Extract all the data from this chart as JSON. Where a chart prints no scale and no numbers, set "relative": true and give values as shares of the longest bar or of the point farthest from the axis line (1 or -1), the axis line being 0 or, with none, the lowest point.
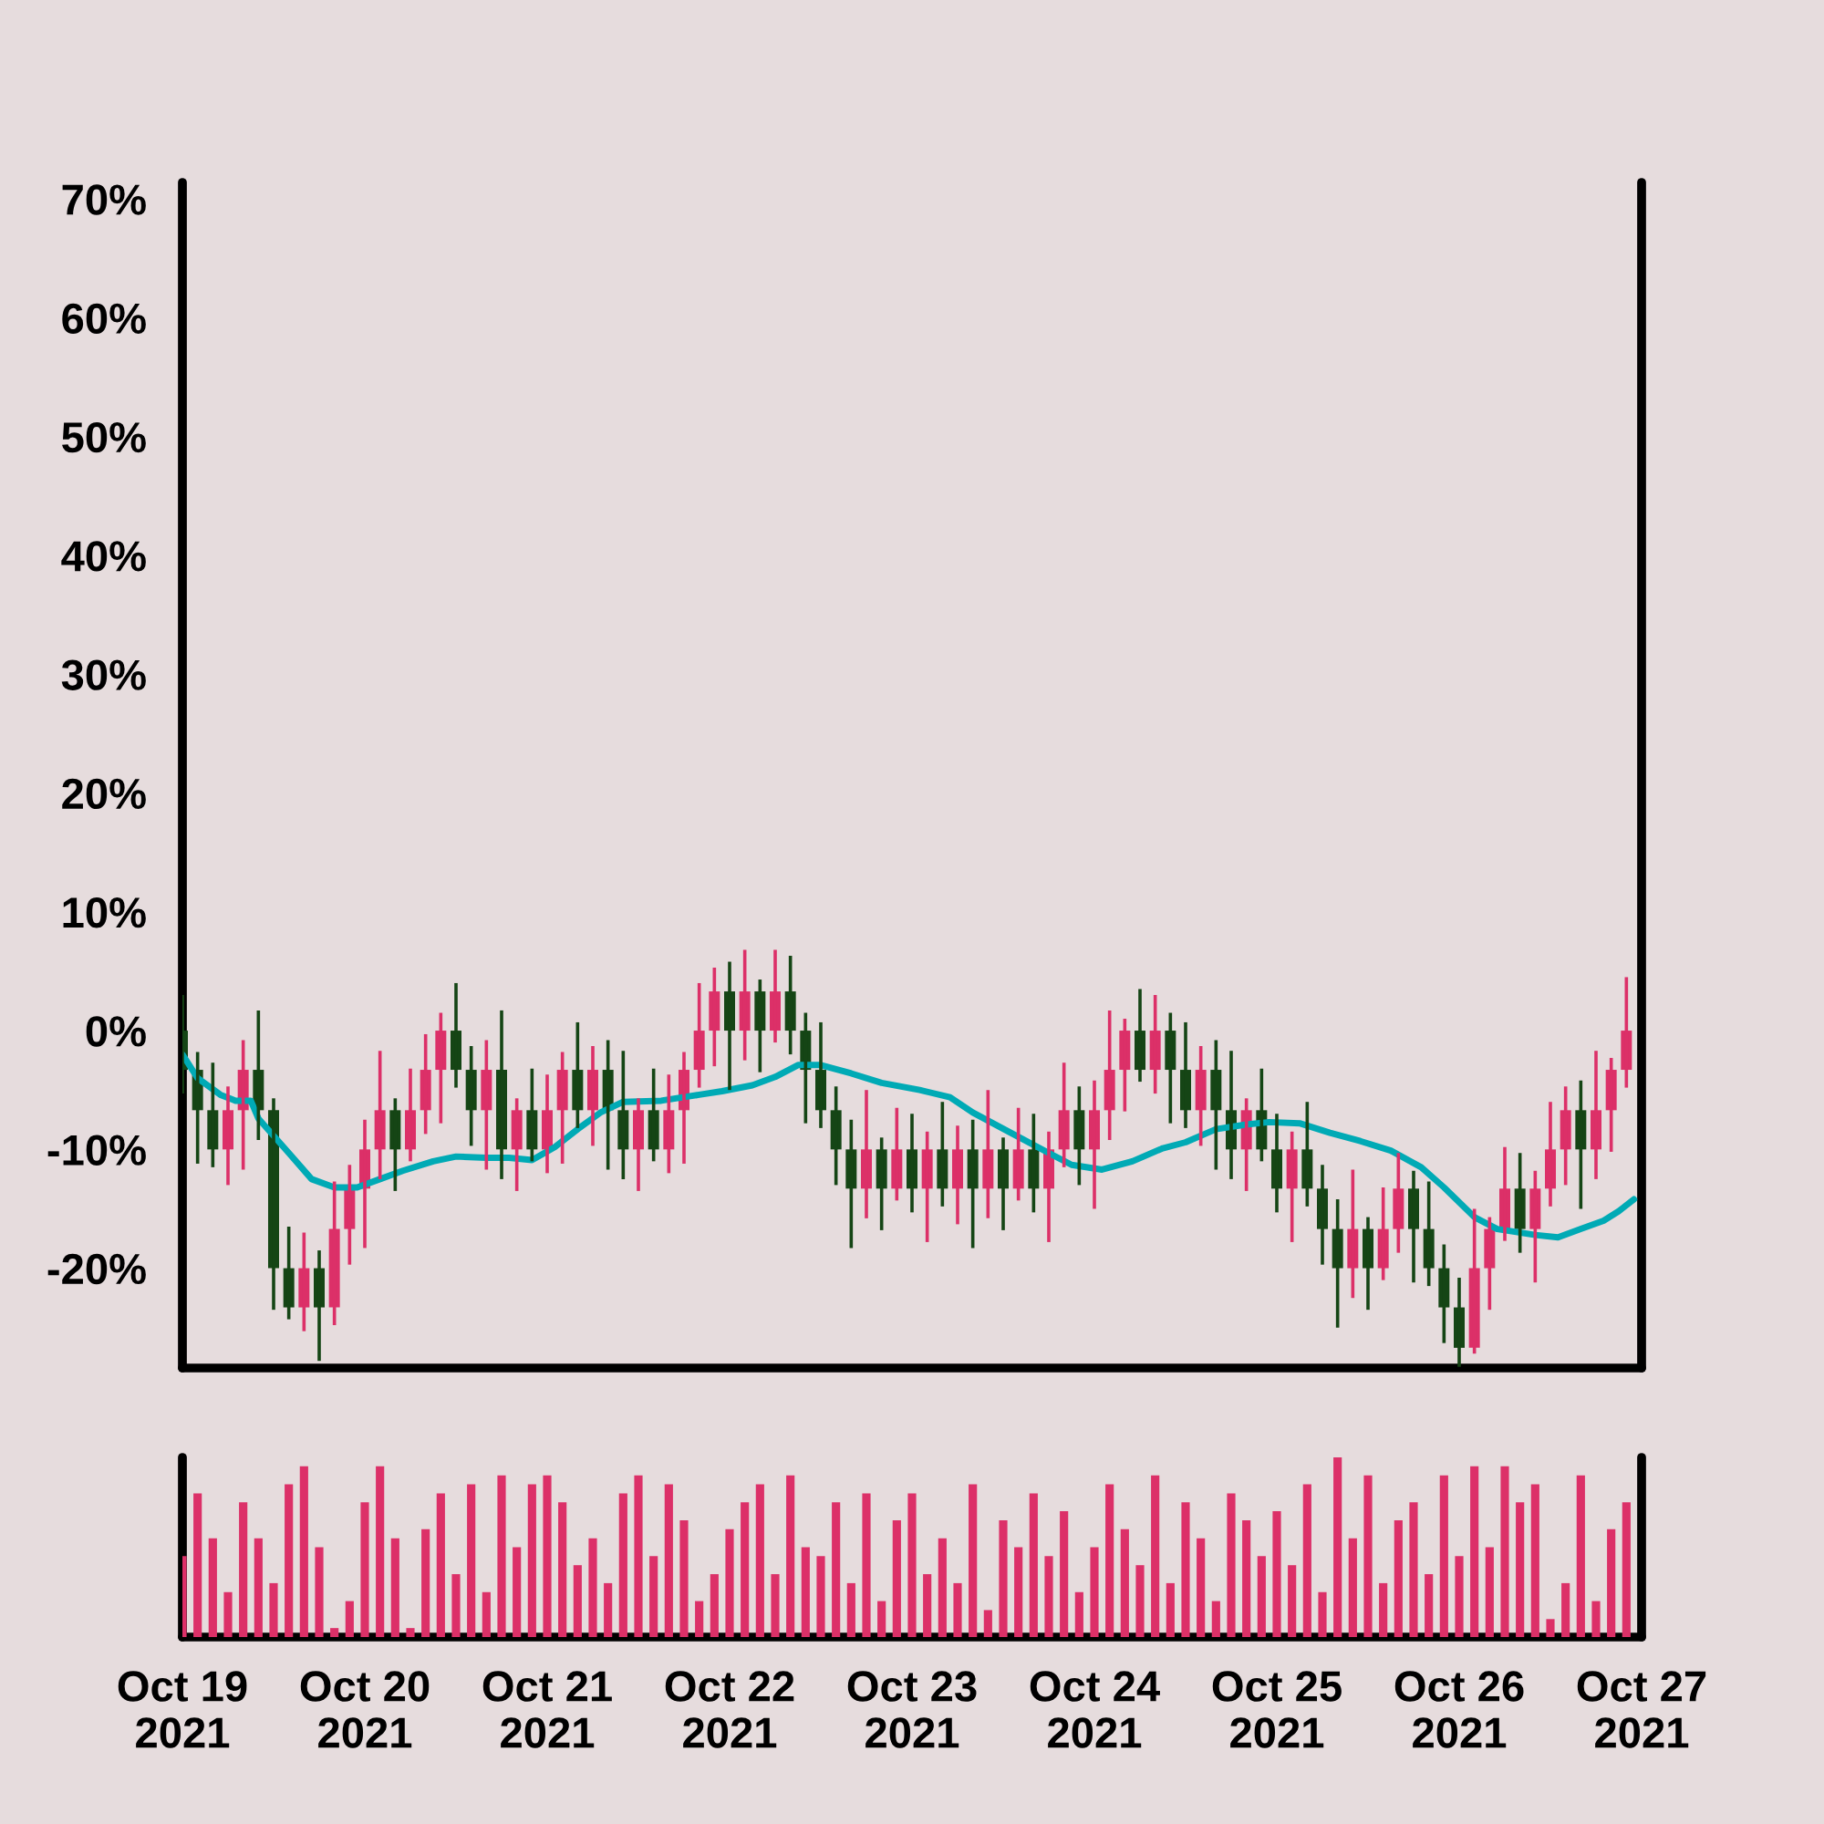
{
  "chart_data": [
    {
      "type": "candlestick",
      "xlim": [
        "2021-10-19",
        "2021-10-27"
      ],
      "ylim": [
        -28.4,
        71.4
      ],
      "yticks": [
        {
          "value": -20,
          "label": "-20%"
        },
        {
          "value": -10,
          "label": "-10%"
        },
        {
          "value": 0,
          "label": "0%"
        },
        {
          "value": 10,
          "label": "10%"
        },
        {
          "value": 20,
          "label": "20%"
        },
        {
          "value": 30,
          "label": "30%"
        },
        {
          "value": 40,
          "label": "40%"
        },
        {
          "value": 50,
          "label": "50%"
        },
        {
          "value": 60,
          "label": "60%"
        },
        {
          "value": 70,
          "label": "70%"
        }
      ],
      "tick_labels": "y",
      "grid": false,
      "series": [
        {
          "type": "line",
          "color": "#00aab5",
          "line_style": "solid",
          "marker": "none",
          "x": [
            "2021-10-19T00:00",
            "2021-10-19T02:00",
            "2021-10-19T05:00",
            "2021-10-19T07:00",
            "2021-10-19T09:00",
            "2021-10-19T10:00",
            "2021-10-19T14:00",
            "2021-10-19T17:00",
            "2021-10-19T20:00",
            "2021-10-19T23:00",
            "2021-10-20T02:00",
            "2021-10-20T05:00",
            "2021-10-20T09:00",
            "2021-10-20T12:00",
            "2021-10-20T16:00",
            "2021-10-20T19:00",
            "2021-10-20T22:00",
            "2021-10-21T01:00",
            "2021-10-21T04:00",
            "2021-10-21T07:00",
            "2021-10-21T10:00",
            "2021-10-21T15:00",
            "2021-10-21T20:00",
            "2021-10-21T23:00",
            "2021-10-22T03:00",
            "2021-10-22T06:00",
            "2021-10-22T09:00",
            "2021-10-22T12:00",
            "2021-10-22T16:00",
            "2021-10-22T20:00",
            "2021-10-23T01:00",
            "2021-10-23T05:00",
            "2021-10-23T08:00",
            "2021-10-23T13:00",
            "2021-10-23T18:00",
            "2021-10-23T21:00",
            "2021-10-24T01:00",
            "2021-10-24T05:00",
            "2021-10-24T09:00",
            "2021-10-24T12:00",
            "2021-10-24T16:00",
            "2021-10-24T20:00",
            "2021-10-24T23:00",
            "2021-10-25T03:00",
            "2021-10-25T07:00",
            "2021-10-25T11:00",
            "2021-10-25T15:00",
            "2021-10-25T19:00",
            "2021-10-25T22:00",
            "2021-10-26T02:00",
            "2021-10-26T05:00",
            "2021-10-26T10:00",
            "2021-10-26T13:00",
            "2021-10-26T16:00",
            "2021-10-26T19:00",
            "2021-10-26T21:00",
            "2021-10-26T23:00"
          ],
          "values": [
            -2,
            -4,
            -5.4,
            -5.9,
            -5.9,
            -7.4,
            -10.3,
            -12.5,
            -13.2,
            -13.2,
            -12.5,
            -11.8,
            -11,
            -10.6,
            -10.7,
            -10.7,
            -10.9,
            -9.8,
            -8.3,
            -6.9,
            -6,
            -5.9,
            -5.4,
            -5.1,
            -4.6,
            -3.9,
            -2.9,
            -2.9,
            -3.6,
            -4.4,
            -5,
            -5.6,
            -6.9,
            -8.6,
            -10.3,
            -11.3,
            -11.7,
            -11,
            -9.9,
            -9.4,
            -8.3,
            -7.9,
            -7.7,
            -7.8,
            -8.6,
            -9.3,
            -10.1,
            -11.5,
            -13.2,
            -15.7,
            -16.7,
            -17.2,
            -17.4,
            -16.7,
            -16,
            -15.2,
            -14.2
          ]
        },
        {
          "type": "candlestick",
          "color": "#dc3068",
          "x": [
            "2021-10-19T06:00",
            "2021-10-19T08:00",
            "2021-10-19T16:00",
            "2021-10-19T20:00",
            "2021-10-19T22:00",
            "2021-10-20T00:00",
            "2021-10-20T02:00",
            "2021-10-20T06:00",
            "2021-10-20T08:00",
            "2021-10-20T10:00",
            "2021-10-20T16:00",
            "2021-10-20T20:00",
            "2021-10-21T00:00",
            "2021-10-21T02:00",
            "2021-10-21T06:00",
            "2021-10-21T12:00",
            "2021-10-21T16:00",
            "2021-10-21T18:00",
            "2021-10-21T20:00",
            "2021-10-21T22:00",
            "2021-10-22T02:00",
            "2021-10-22T06:00",
            "2021-10-22T18:00",
            "2021-10-22T22:00",
            "2021-10-23T02:00",
            "2021-10-23T06:00",
            "2021-10-23T10:00",
            "2021-10-23T14:00",
            "2021-10-23T18:00",
            "2021-10-23T20:00",
            "2021-10-24T00:00",
            "2021-10-24T02:00",
            "2021-10-24T04:00",
            "2021-10-24T08:00",
            "2021-10-24T14:00",
            "2021-10-24T20:00",
            "2021-10-25T02:00",
            "2021-10-25T10:00",
            "2021-10-25T14:00",
            "2021-10-25T16:00",
            "2021-10-26T02:00",
            "2021-10-26T04:00",
            "2021-10-26T06:00",
            "2021-10-26T10:00",
            "2021-10-26T12:00",
            "2021-10-26T14:00",
            "2021-10-26T18:00",
            "2021-10-26T20:00",
            "2021-10-26T22:00"
          ],
          "ohlc": [
            [
              -10,
              -4.7,
              -13,
              -6.7
            ],
            [
              -6.7,
              -0.8,
              -11.7,
              -3.3
            ],
            [
              -23.3,
              -17,
              -25.3,
              -20
            ],
            [
              -23.3,
              -12.7,
              -24.8,
              -16.7
            ],
            [
              -16.7,
              -11.3,
              -19.7,
              -13.3
            ],
            [
              -13.3,
              -7.5,
              -18.3,
              -10
            ],
            [
              -10,
              -1.7,
              -12.5,
              -6.7
            ],
            [
              -10,
              -3.2,
              -11,
              -6.7
            ],
            [
              -6.7,
              -0.3,
              -8.7,
              -3.3
            ],
            [
              -3.3,
              1.5,
              -7.8,
              0
            ],
            [
              -6.7,
              -0.8,
              -11.7,
              -3.3
            ],
            [
              -10,
              -5.7,
              -13.5,
              -6.7
            ],
            [
              -10,
              -3.7,
              -12,
              -6.7
            ],
            [
              -6.7,
              -1.8,
              -11.2,
              -3.3
            ],
            [
              -6.7,
              -1.3,
              -9.7,
              -3.3
            ],
            [
              -10,
              -5.7,
              -13.5,
              -6.7
            ],
            [
              -10,
              -3.7,
              -12,
              -6.7
            ],
            [
              -6.7,
              -1.8,
              -11.2,
              -3.3
            ],
            [
              -3.3,
              4,
              -4.8,
              0
            ],
            [
              0,
              5.3,
              -3,
              3.3
            ],
            [
              0,
              6.8,
              -2.5,
              3.3
            ],
            [
              0,
              6.8,
              -1,
              3.3
            ],
            [
              -13.3,
              -5,
              -15.8,
              -10
            ],
            [
              -13.3,
              -6.5,
              -14.3,
              -10
            ],
            [
              -13.3,
              -8.5,
              -17.8,
              -10
            ],
            [
              -13.3,
              -8,
              -16.3,
              -10
            ],
            [
              -13.3,
              -5,
              -15.8,
              -10
            ],
            [
              -13.3,
              -6.5,
              -14.3,
              -10
            ],
            [
              -13.3,
              -8.5,
              -17.8,
              -10
            ],
            [
              -10,
              -2.7,
              -11.5,
              -6.7
            ],
            [
              -10,
              -4.2,
              -15,
              -6.7
            ],
            [
              -6.7,
              1.7,
              -9.2,
              -3.3
            ],
            [
              -3.3,
              1,
              -6.8,
              0
            ],
            [
              -3.3,
              3,
              -5.3,
              0
            ],
            [
              -6.7,
              -1.3,
              -9.7,
              -3.3
            ],
            [
              -10,
              -5.7,
              -13.5,
              -6.7
            ],
            [
              -13.3,
              -8.5,
              -17.8,
              -10
            ],
            [
              -20,
              -11.7,
              -22.5,
              -16.7
            ],
            [
              -20,
              -13.2,
              -21,
              -16.7
            ],
            [
              -16.7,
              -10.3,
              -18.7,
              -13.3
            ],
            [
              -26.7,
              -15,
              -27.2,
              -20
            ],
            [
              -20,
              -15.7,
              -23.5,
              -16.7
            ],
            [
              -16.7,
              -9.8,
              -17.7,
              -13.3
            ],
            [
              -16.7,
              -11.8,
              -21.2,
              -13.3
            ],
            [
              -13.3,
              -6,
              -14.8,
              -10
            ],
            [
              -10,
              -4.7,
              -13,
              -6.7
            ],
            [
              -10,
              -1.7,
              -12.5,
              -6.7
            ],
            [
              -6.7,
              -2.3,
              -10.2,
              -3.3
            ],
            [
              -3.3,
              4.5,
              -4.8,
              0
            ]
          ]
        },
        {
          "type": "candlestick",
          "color": "#154515",
          "x": [
            "2021-10-19T00:00",
            "2021-10-19T02:00",
            "2021-10-19T04:00",
            "2021-10-19T10:00",
            "2021-10-19T12:00",
            "2021-10-19T14:00",
            "2021-10-19T18:00",
            "2021-10-20T04:00",
            "2021-10-20T12:00",
            "2021-10-20T14:00",
            "2021-10-20T18:00",
            "2021-10-20T22:00",
            "2021-10-21T04:00",
            "2021-10-21T08:00",
            "2021-10-21T10:00",
            "2021-10-21T14:00",
            "2021-10-22T00:00",
            "2021-10-22T04:00",
            "2021-10-22T08:00",
            "2021-10-22T10:00",
            "2021-10-22T12:00",
            "2021-10-22T14:00",
            "2021-10-22T16:00",
            "2021-10-22T20:00",
            "2021-10-23T00:00",
            "2021-10-23T04:00",
            "2021-10-23T08:00",
            "2021-10-23T12:00",
            "2021-10-23T16:00",
            "2021-10-23T22:00",
            "2021-10-24T06:00",
            "2021-10-24T10:00",
            "2021-10-24T12:00",
            "2021-10-24T16:00",
            "2021-10-24T18:00",
            "2021-10-24T22:00",
            "2021-10-25T00:00",
            "2021-10-25T04:00",
            "2021-10-25T06:00",
            "2021-10-25T08:00",
            "2021-10-25T12:00",
            "2021-10-25T18:00",
            "2021-10-25T20:00",
            "2021-10-25T22:00",
            "2021-10-26T00:00",
            "2021-10-26T08:00",
            "2021-10-26T16:00"
          ],
          "ohlc": [
            [
              0,
              3,
              -5.3,
              -3.3
            ],
            [
              -3.3,
              -1.8,
              -11.2,
              -6.7
            ],
            [
              -6.7,
              -2.7,
              -11.5,
              -10
            ],
            [
              -3.3,
              1.7,
              -9.2,
              -6.7
            ],
            [
              -6.7,
              -5.7,
              -23.5,
              -20
            ],
            [
              -20,
              -16.5,
              -24.3,
              -23.3
            ],
            [
              -20,
              -18.5,
              -27.8,
              -23.3
            ],
            [
              -6.7,
              -5.7,
              -13.5,
              -10
            ],
            [
              0,
              4,
              -4.8,
              -3.3
            ],
            [
              -3.3,
              -1.3,
              -9.7,
              -6.7
            ],
            [
              -3.3,
              1.7,
              -12.5,
              -10
            ],
            [
              -6.7,
              -3.2,
              -11,
              -10
            ],
            [
              -3.3,
              0.7,
              -8.2,
              -6.7
            ],
            [
              -3.3,
              -0.8,
              -11.7,
              -6.7
            ],
            [
              -6.7,
              -1.7,
              -12.5,
              -10
            ],
            [
              -6.7,
              -3.2,
              -11,
              -10
            ],
            [
              3.3,
              5.8,
              -5,
              0
            ],
            [
              3.3,
              4.3,
              -3.5,
              0
            ],
            [
              3.3,
              6.3,
              -2,
              0
            ],
            [
              0,
              1.5,
              -7.8,
              -3.3
            ],
            [
              -3.3,
              0.7,
              -8.2,
              -6.7
            ],
            [
              -6.7,
              -4.7,
              -13,
              -10
            ],
            [
              -10,
              -7.5,
              -18.3,
              -13.3
            ],
            [
              -10,
              -9,
              -16.8,
              -13.3
            ],
            [
              -10,
              -7,
              -15.3,
              -13.3
            ],
            [
              -10,
              -6,
              -14.8,
              -13.3
            ],
            [
              -10,
              -7.5,
              -18.3,
              -13.3
            ],
            [
              -10,
              -9,
              -16.8,
              -13.3
            ],
            [
              -10,
              -7,
              -15.3,
              -13.3
            ],
            [
              -6.7,
              -4.7,
              -13,
              -10
            ],
            [
              0,
              3.5,
              -4.3,
              -3.3
            ],
            [
              0,
              1.5,
              -7.8,
              -3.3
            ],
            [
              -3.3,
              0.7,
              -8.2,
              -6.7
            ],
            [
              -3.3,
              -0.8,
              -11.7,
              -6.7
            ],
            [
              -6.7,
              -1.7,
              -12.5,
              -10
            ],
            [
              -6.7,
              -3.2,
              -11,
              -10
            ],
            [
              -10,
              -7,
              -15.3,
              -13.3
            ],
            [
              -10,
              -6,
              -14.8,
              -13.3
            ],
            [
              -13.3,
              -11.3,
              -19.7,
              -16.7
            ],
            [
              -16.7,
              -14.2,
              -25,
              -20
            ],
            [
              -16.7,
              -15.7,
              -23.5,
              -20
            ],
            [
              -13.3,
              -11.8,
              -21.2,
              -16.7
            ],
            [
              -16.7,
              -12.7,
              -21.5,
              -20
            ],
            [
              -20,
              -18,
              -26.3,
              -23.3
            ],
            [
              -23.3,
              -20.8,
              -28.3,
              -26.7
            ],
            [
              -13.3,
              -10.3,
              -18.7,
              -16.7
            ],
            [
              -6.7,
              -4.2,
              -15,
              -10
            ]
          ]
        }
      ]
    },
    {
      "type": "bar",
      "relative": true,
      "color": "#dc3068",
      "xlim": [
        "2021-10-19",
        "2021-10-27"
      ],
      "tick_labels": "x",
      "grid": false,
      "xticks": [
        {
          "value": "2021-10-19",
          "label": "Oct 19\n2021"
        },
        {
          "value": "2021-10-20",
          "label": "Oct 20\n2021"
        },
        {
          "value": "2021-10-21",
          "label": "Oct 21\n2021"
        },
        {
          "value": "2021-10-22",
          "label": "Oct 22\n2021"
        },
        {
          "value": "2021-10-23",
          "label": "Oct 23\n2021"
        },
        {
          "value": "2021-10-24",
          "label": "Oct 24\n2021"
        },
        {
          "value": "2021-10-25",
          "label": "Oct 25\n2021"
        },
        {
          "value": "2021-10-26",
          "label": "Oct 26\n2021"
        },
        {
          "value": "2021-10-27",
          "label": "Oct 27\n2021"
        }
      ],
      "x": [
        "2021-10-19T00:00",
        "2021-10-19T02:00",
        "2021-10-19T04:00",
        "2021-10-19T06:00",
        "2021-10-19T08:00",
        "2021-10-19T10:00",
        "2021-10-19T12:00",
        "2021-10-19T14:00",
        "2021-10-19T16:00",
        "2021-10-19T18:00",
        "2021-10-19T20:00",
        "2021-10-19T22:00",
        "2021-10-20T00:00",
        "2021-10-20T02:00",
        "2021-10-20T04:00",
        "2021-10-20T06:00",
        "2021-10-20T08:00",
        "2021-10-20T10:00",
        "2021-10-20T12:00",
        "2021-10-20T14:00",
        "2021-10-20T16:00",
        "2021-10-20T18:00",
        "2021-10-20T20:00",
        "2021-10-20T22:00",
        "2021-10-21T00:00",
        "2021-10-21T02:00",
        "2021-10-21T04:00",
        "2021-10-21T06:00",
        "2021-10-21T08:00",
        "2021-10-21T10:00",
        "2021-10-21T12:00",
        "2021-10-21T14:00",
        "2021-10-21T16:00",
        "2021-10-21T18:00",
        "2021-10-21T20:00",
        "2021-10-21T22:00",
        "2021-10-22T00:00",
        "2021-10-22T02:00",
        "2021-10-22T04:00",
        "2021-10-22T06:00",
        "2021-10-22T08:00",
        "2021-10-22T10:00",
        "2021-10-22T12:00",
        "2021-10-22T14:00",
        "2021-10-22T16:00",
        "2021-10-22T18:00",
        "2021-10-22T20:00",
        "2021-10-22T22:00",
        "2021-10-23T00:00",
        "2021-10-23T02:00",
        "2021-10-23T04:00",
        "2021-10-23T06:00",
        "2021-10-23T08:00",
        "2021-10-23T10:00",
        "2021-10-23T12:00",
        "2021-10-23T14:00",
        "2021-10-23T16:00",
        "2021-10-23T18:00",
        "2021-10-23T20:00",
        "2021-10-23T22:00",
        "2021-10-24T00:00",
        "2021-10-24T02:00",
        "2021-10-24T04:00",
        "2021-10-24T06:00",
        "2021-10-24T08:00",
        "2021-10-24T10:00",
        "2021-10-24T12:00",
        "2021-10-24T14:00",
        "2021-10-24T16:00",
        "2021-10-24T18:00",
        "2021-10-24T20:00",
        "2021-10-24T22:00",
        "2021-10-25T00:00",
        "2021-10-25T02:00",
        "2021-10-25T04:00",
        "2021-10-25T06:00",
        "2021-10-25T08:00",
        "2021-10-25T10:00",
        "2021-10-25T12:00",
        "2021-10-25T14:00",
        "2021-10-25T16:00",
        "2021-10-25T18:00",
        "2021-10-25T20:00",
        "2021-10-25T22:00",
        "2021-10-26T00:00",
        "2021-10-26T02:00",
        "2021-10-26T04:00",
        "2021-10-26T06:00",
        "2021-10-26T08:00",
        "2021-10-26T10:00",
        "2021-10-26T12:00",
        "2021-10-26T14:00",
        "2021-10-26T16:00",
        "2021-10-26T18:00",
        "2021-10-26T20:00",
        "2021-10-26T22:00"
      ],
      "values": [
        0.45,
        0.8,
        0.55,
        0.25,
        0.75,
        0.55,
        0.3,
        0.85,
        0.95,
        0.5,
        0.05,
        0.2,
        0.75,
        0.95,
        0.55,
        0.05,
        0.6,
        0.8,
        0.35,
        0.85,
        0.25,
        0.9,
        0.5,
        0.85,
        0.9,
        0.75,
        0.4,
        0.55,
        0.3,
        0.8,
        0.9,
        0.45,
        0.85,
        0.65,
        0.2,
        0.35,
        0.6,
        0.75,
        0.85,
        0.35,
        0.9,
        0.5,
        0.45,
        0.75,
        0.3,
        0.8,
        0.2,
        0.65,
        0.8,
        0.35,
        0.55,
        0.3,
        0.85,
        0.15,
        0.65,
        0.5,
        0.8,
        0.45,
        0.7,
        0.25,
        0.5,
        0.85,
        0.6,
        0.4,
        0.9,
        0.3,
        0.75,
        0.55,
        0.2,
        0.8,
        0.65,
        0.45,
        0.7,
        0.4,
        0.85,
        0.25,
        1.0,
        0.55,
        0.9,
        0.3,
        0.65,
        0.75,
        0.35,
        0.9,
        0.45,
        0.95,
        0.5,
        0.95,
        0.75,
        0.85,
        0.1,
        0.3,
        0.9,
        0.2,
        0.6,
        0.75
      ]
    }
  ]
}
